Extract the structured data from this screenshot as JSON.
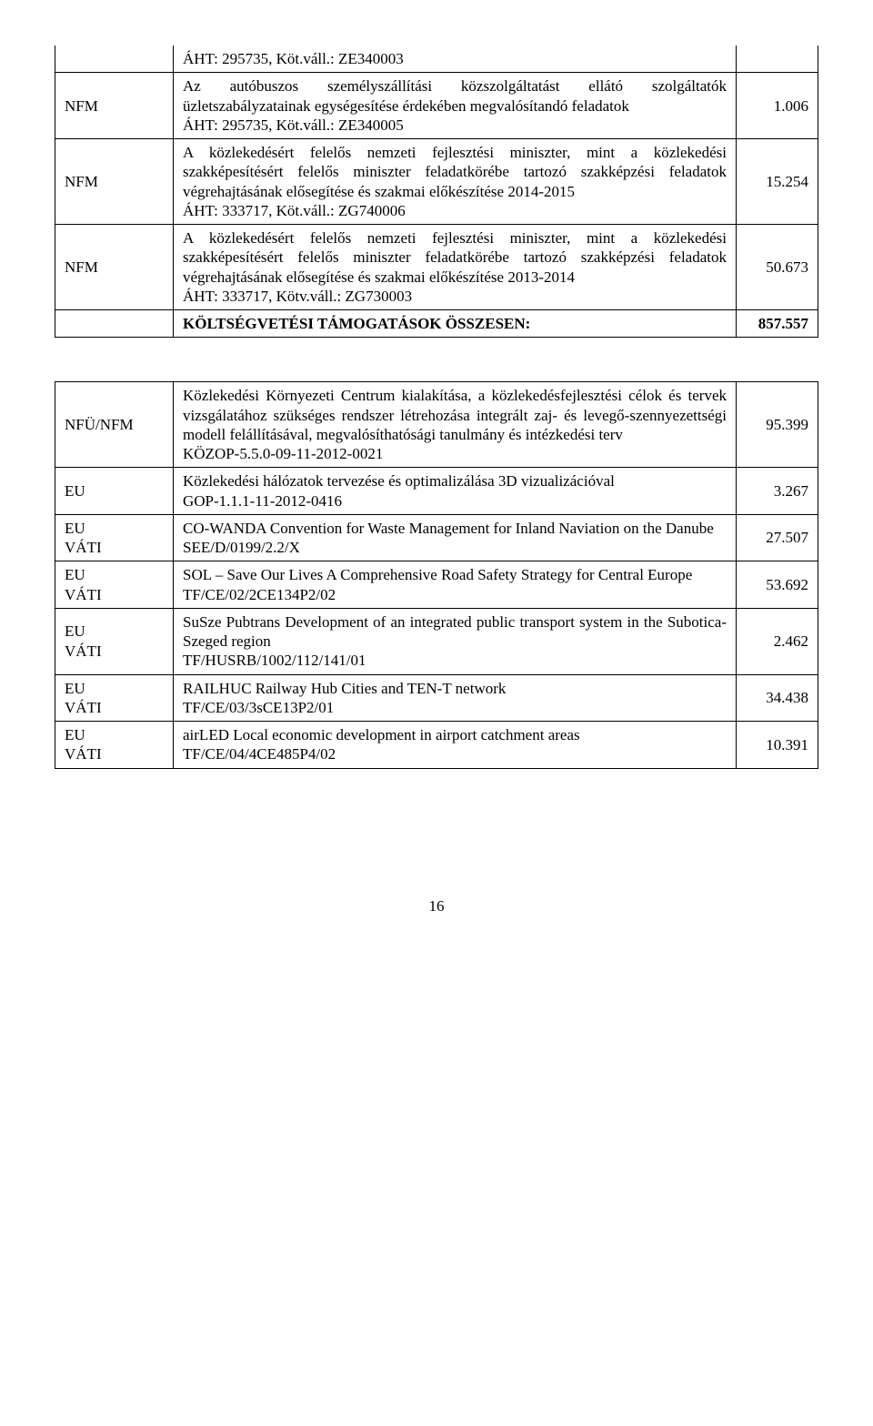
{
  "table1": {
    "rows": [
      {
        "topLine": "ÁHT: 295735, Köt.váll.: ZE340003",
        "funder": "NFM",
        "desc": "Az autóbuszos személyszállítási közszolgáltatást ellátó szolgáltatók üzletszabályzatainak egységesítése érdekében megvalósítandó feladatok",
        "ref": "ÁHT: 295735, Köt.váll.: ZE340005",
        "value": "1.006"
      },
      {
        "funder": "NFM",
        "desc": "A közlekedésért felelős nemzeti fejlesztési miniszter, mint a közlekedési szakképesítésért felelős miniszter feladatkörébe tartozó szakképzési feladatok végrehajtásának elősegítése és szakmai előkészítése 2014-2015",
        "ref": "ÁHT: 333717, Köt.váll.: ZG740006",
        "value": "15.254"
      },
      {
        "funder": "NFM",
        "desc": "A közlekedésért felelős nemzeti fejlesztési miniszter, mint a közlekedési szakképesítésért felelős miniszter feladatkörébe tartozó szakképzési feladatok végrehajtásának elősegítése és szakmai előkészítése 2013-2014",
        "ref": "ÁHT: 333717, Kötv.váll.: ZG730003",
        "value": "50.673"
      }
    ],
    "totalsLabel": "KÖLTSÉGVETÉSI TÁMOGATÁSOK ÖSSZESEN:",
    "totalsValue": "857.557"
  },
  "table2": {
    "rows": [
      {
        "funder": "NFÜ/NFM",
        "desc": "Közlekedési Környezeti Centrum kialakítása, a közlekedésfejlesztési célok és tervek vizsgálatához szükséges rendszer létrehozása integrált zaj- és levegő-szennyezettségi modell felállításával, megvalósíthatósági tanulmány és intézkedési terv",
        "ref": "KÖZOP-5.5.0-09-11-2012-0021",
        "value": "95.399"
      },
      {
        "funder": "EU",
        "desc": "Közlekedési hálózatok tervezése és optimalizálása 3D vizualizációval",
        "ref": "GOP-1.1.1-11-2012-0416",
        "value": "3.267"
      },
      {
        "funder": "EU\nVÁTI",
        "desc": "CO-WANDA Convention for Waste Management for Inland Naviation on  the Danube",
        "ref": "SEE/D/0199/2.2/X",
        "value": "27.507"
      },
      {
        "funder": "EU\nVÁTI",
        "desc": "SOL – Save Our Lives A Comprehensive Road Safety Strategy for Central Europe",
        "ref": "TF/CE/02/2CE134P2/02",
        "value": "53.692"
      },
      {
        "funder": "EU\nVÁTI",
        "desc": "SuSze Pubtrans Development of an integrated public transport system in the Subotica-Szeged region",
        "ref": "TF/HUSRB/1002/112/141/01",
        "value": "2.462"
      },
      {
        "funder": "EU\nVÁTI",
        "desc": "RAILHUC Railway Hub Cities and TEN-T network",
        "ref": "TF/CE/03/3sCE13P2/01",
        "value": "34.438"
      },
      {
        "funder": "EU\nVÁTI",
        "desc": "airLED Local economic development in airport catchment areas",
        "ref": "TF/CE/04/4CE485P4/02",
        "value": "10.391"
      }
    ]
  },
  "pageNumber": "16"
}
